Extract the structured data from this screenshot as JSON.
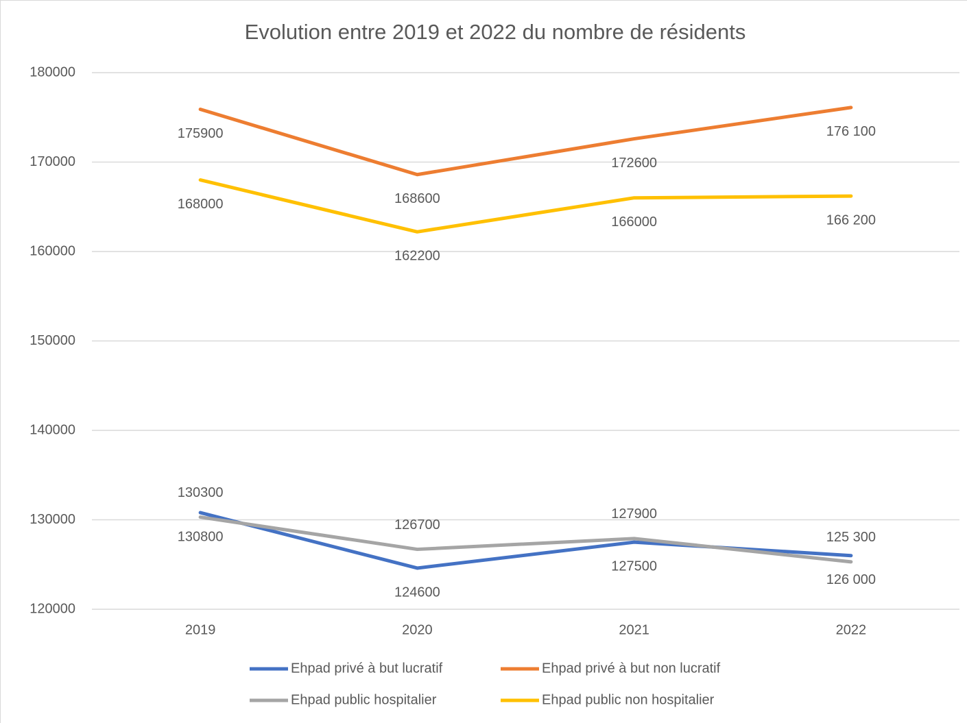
{
  "chart_data": {
    "type": "line",
    "title": "Evolution entre 2019 et 2022 du nombre de résidents",
    "categories": [
      "2019",
      "2020",
      "2021",
      "2022"
    ],
    "series": [
      {
        "name": "Ehpad privé à but lucratif",
        "color": "#4472c4",
        "values": [
          130800,
          124600,
          127500,
          126000
        ],
        "value_labels": [
          "130800",
          "124600",
          "127500",
          "126 000"
        ]
      },
      {
        "name": "Ehpad privé à but non lucratif",
        "color": "#ed7d31",
        "values": [
          175900,
          168600,
          172600,
          176100
        ],
        "value_labels": [
          "175900",
          "168600",
          "172600",
          "176 100"
        ]
      },
      {
        "name": "Ehpad public hospitalier",
        "color": "#a5a5a5",
        "values": [
          130300,
          126700,
          127900,
          125300
        ],
        "value_labels": [
          "130300",
          "126700",
          "127900",
          "125 300"
        ]
      },
      {
        "name": "Ehpad public non hospitalier",
        "color": "#ffc000",
        "values": [
          168000,
          162200,
          166000,
          166200
        ],
        "value_labels": [
          "168000",
          "162200",
          "166000",
          "166 200"
        ]
      }
    ],
    "ylim": [
      120000,
      180000
    ],
    "yticks": [
      120000,
      130000,
      140000,
      150000,
      160000,
      170000,
      180000
    ],
    "grid": true,
    "legend": "bottom"
  }
}
